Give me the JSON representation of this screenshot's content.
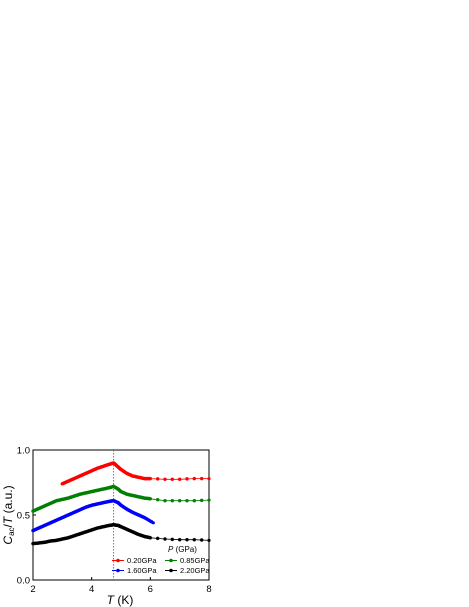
{
  "chart_data": {
    "type": "scatter",
    "xlabel_italic": "T",
    "xlabel_rest": " (K)",
    "ylabel_italic_c": "C",
    "ylabel_sub": "ac",
    "ylabel_mid": "/",
    "ylabel_italic_t": "T",
    "ylabel_rest": " (a.u.)",
    "xlim": [
      2,
      8
    ],
    "ylim": [
      0.0,
      1.0
    ],
    "xticks": [
      2,
      4,
      6,
      8
    ],
    "yticks": [
      0.0,
      0.5,
      1.0
    ],
    "ytick_labels": [
      "0.0",
      "0.5",
      "1.0"
    ],
    "vline_x": 4.75,
    "legend_title_italic": "P",
    "legend_title_rest": " (GPa)",
    "legend_placement": "bottom-right",
    "series": [
      {
        "name": "0.20GPa",
        "color": "#ff0000",
        "points": [
          [
            3.0,
            0.74
          ],
          [
            3.2,
            0.76
          ],
          [
            3.4,
            0.78
          ],
          [
            3.6,
            0.8
          ],
          [
            3.8,
            0.82
          ],
          [
            4.0,
            0.84
          ],
          [
            4.2,
            0.86
          ],
          [
            4.4,
            0.875
          ],
          [
            4.6,
            0.89
          ],
          [
            4.75,
            0.9
          ],
          [
            4.9,
            0.87
          ],
          [
            5.0,
            0.85
          ],
          [
            5.2,
            0.82
          ],
          [
            5.4,
            0.8
          ],
          [
            5.6,
            0.79
          ],
          [
            5.8,
            0.78
          ],
          [
            6.0,
            0.78
          ],
          [
            6.5,
            0.775
          ],
          [
            7.0,
            0.775
          ],
          [
            7.5,
            0.78
          ],
          [
            8.0,
            0.78
          ]
        ]
      },
      {
        "name": "0.85GPa",
        "color": "#008000",
        "points": [
          [
            2.0,
            0.53
          ],
          [
            2.2,
            0.55
          ],
          [
            2.4,
            0.57
          ],
          [
            2.6,
            0.59
          ],
          [
            2.8,
            0.61
          ],
          [
            3.0,
            0.62
          ],
          [
            3.2,
            0.63
          ],
          [
            3.4,
            0.645
          ],
          [
            3.6,
            0.66
          ],
          [
            3.8,
            0.67
          ],
          [
            4.0,
            0.68
          ],
          [
            4.2,
            0.69
          ],
          [
            4.4,
            0.7
          ],
          [
            4.6,
            0.71
          ],
          [
            4.75,
            0.72
          ],
          [
            4.9,
            0.7
          ],
          [
            5.0,
            0.68
          ],
          [
            5.2,
            0.66
          ],
          [
            5.4,
            0.65
          ],
          [
            5.6,
            0.64
          ],
          [
            5.8,
            0.63
          ],
          [
            6.0,
            0.625
          ],
          [
            6.5,
            0.61
          ],
          [
            7.0,
            0.61
          ],
          [
            7.5,
            0.61
          ],
          [
            8.0,
            0.615
          ]
        ]
      },
      {
        "name": "1.60GPa",
        "color": "#0000ff",
        "points": [
          [
            2.0,
            0.38
          ],
          [
            2.2,
            0.4
          ],
          [
            2.4,
            0.42
          ],
          [
            2.6,
            0.44
          ],
          [
            2.8,
            0.46
          ],
          [
            3.0,
            0.48
          ],
          [
            3.2,
            0.5
          ],
          [
            3.4,
            0.52
          ],
          [
            3.6,
            0.54
          ],
          [
            3.8,
            0.56
          ],
          [
            4.0,
            0.575
          ],
          [
            4.2,
            0.585
          ],
          [
            4.4,
            0.595
          ],
          [
            4.6,
            0.605
          ],
          [
            4.75,
            0.61
          ],
          [
            4.9,
            0.595
          ],
          [
            5.0,
            0.575
          ],
          [
            5.2,
            0.545
          ],
          [
            5.4,
            0.52
          ],
          [
            5.6,
            0.5
          ],
          [
            5.8,
            0.48
          ],
          [
            6.1,
            0.44
          ]
        ]
      },
      {
        "name": "2.20GPa",
        "color": "#000000",
        "points": [
          [
            2.0,
            0.28
          ],
          [
            2.2,
            0.285
          ],
          [
            2.4,
            0.29
          ],
          [
            2.6,
            0.3
          ],
          [
            2.8,
            0.305
          ],
          [
            3.0,
            0.315
          ],
          [
            3.2,
            0.325
          ],
          [
            3.4,
            0.34
          ],
          [
            3.6,
            0.355
          ],
          [
            3.8,
            0.37
          ],
          [
            4.0,
            0.385
          ],
          [
            4.2,
            0.4
          ],
          [
            4.4,
            0.41
          ],
          [
            4.6,
            0.42
          ],
          [
            4.75,
            0.425
          ],
          [
            4.9,
            0.42
          ],
          [
            5.0,
            0.41
          ],
          [
            5.2,
            0.39
          ],
          [
            5.4,
            0.37
          ],
          [
            5.6,
            0.35
          ],
          [
            5.8,
            0.335
          ],
          [
            6.0,
            0.325
          ],
          [
            6.5,
            0.315
          ],
          [
            7.0,
            0.31
          ],
          [
            7.5,
            0.31
          ],
          [
            8.0,
            0.305
          ]
        ]
      }
    ]
  }
}
